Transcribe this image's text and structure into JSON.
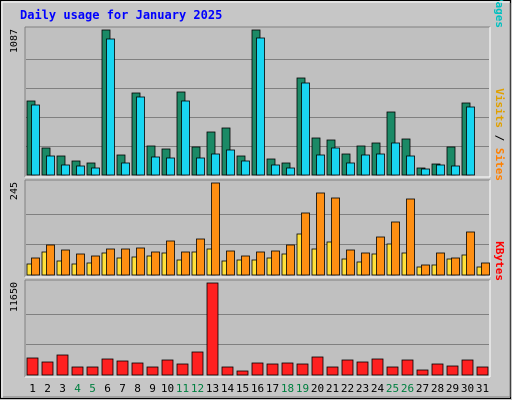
{
  "chart_data": {
    "type": "bar",
    "title": "Daily usage for January 2025",
    "categories": [
      "1",
      "2",
      "3",
      "4",
      "5",
      "6",
      "7",
      "8",
      "9",
      "10",
      "11",
      "12",
      "13",
      "14",
      "15",
      "16",
      "17",
      "18",
      "19",
      "20",
      "21",
      "22",
      "23",
      "24",
      "25",
      "26",
      "27",
      "28",
      "29",
      "30",
      "31"
    ],
    "weekend_days": [
      "4",
      "5",
      "11",
      "12",
      "18",
      "19",
      "25",
      "26"
    ],
    "panels": [
      {
        "id": "hits",
        "max_label": "1087",
        "ymax": 1087,
        "right_labels": [
          {
            "text": "Hits",
            "color": "#008040"
          },
          {
            "text": " / ",
            "color": "#000000"
          },
          {
            "text": "Files",
            "color": "#0000ff"
          },
          {
            "text": " / ",
            "color": "#000000"
          },
          {
            "text": "Pages",
            "color": "#00c0c0"
          }
        ],
        "series": [
          {
            "name": "Hits",
            "color": "#1b8a66",
            "values": [
              557,
              201,
              139,
              105,
              89,
              1087,
              150,
              615,
              216,
              197,
              625,
              213,
              321,
              355,
              142,
              1087,
              117,
              92,
              724,
              279,
              261,
              156,
              219,
              242,
              475,
              271,
              51,
              86,
              212,
              537,
              0
            ]
          },
          {
            "name": "Pages",
            "color": "#19d6f2",
            "values": [
              522,
              141,
              72,
              71,
              55,
              1016,
              89,
              581,
              134,
              124,
              554,
              127,
              160,
              191,
              105,
              1026,
              73,
              49,
              686,
              150,
              199,
              89,
              152,
              155,
              238,
              140,
              42,
              72,
              67,
              510,
              0
            ]
          }
        ]
      },
      {
        "id": "visits",
        "max_label": "245",
        "ymax": 245,
        "right_labels": [
          {
            "text": "Visits",
            "color": "#e0a000"
          },
          {
            "text": " / ",
            "color": "#000000"
          },
          {
            "text": "Sites",
            "color": "#ff8000"
          }
        ],
        "series": [
          {
            "name": "Sites",
            "color": "#ffe13a",
            "values": [
              29,
              61,
              38,
              30,
              32,
              58,
              44,
              49,
              51,
              59,
              39,
              61,
              70,
              38,
              41,
              40,
              44,
              57,
              110,
              69,
              88,
              42,
              35,
              55,
              82,
              58,
              20,
              27,
              42,
              54,
              20
            ]
          },
          {
            "name": "Visits",
            "color": "#ff8f12",
            "values": [
              46,
              79,
              67,
              56,
              51,
              69,
              69,
              71,
              61,
              91,
              62,
              95,
              245,
              64,
              50,
              62,
              65,
              81,
              165,
              218,
              205,
              66,
              59,
              101,
              141,
              202,
              27,
              58,
              44,
              115,
              33
            ]
          }
        ]
      },
      {
        "id": "kbytes",
        "max_label": "11650",
        "ymax": 11650,
        "right_labels": [
          {
            "text": "KBytes",
            "color": "#ff0000"
          }
        ],
        "series": [
          {
            "name": "KBytes",
            "color": "#ff2020",
            "values": [
              2122,
              1622,
              2498,
              1043,
              1022,
              2062,
              1829,
              1516,
              1048,
              1937,
              1353,
              2967,
              11650,
              1062,
              537,
              1471,
              1399,
              1529,
              1365,
              2336,
              1014,
              1858,
              1688,
              2007,
              983,
              1883,
              584,
              1418,
              1117,
              1954,
              1010
            ]
          }
        ]
      }
    ]
  }
}
